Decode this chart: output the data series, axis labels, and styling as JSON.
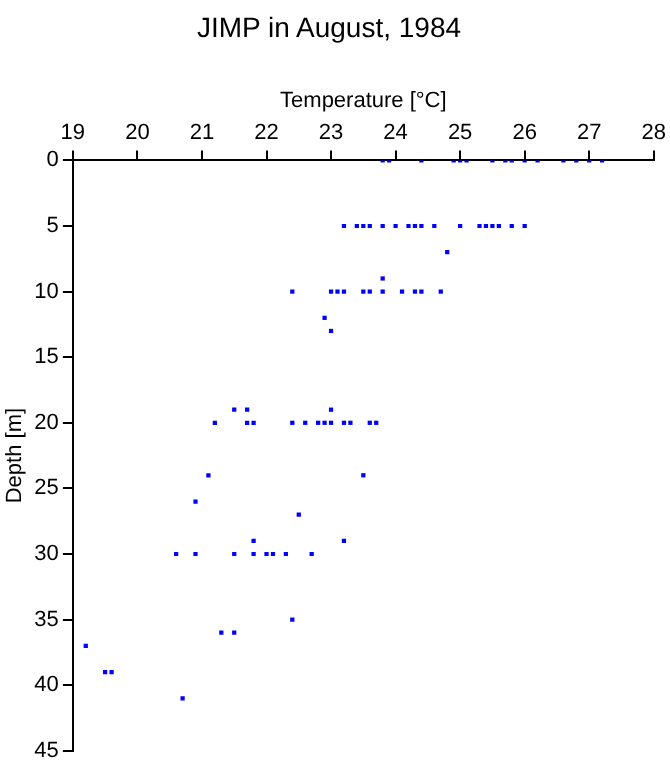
{
  "chart_data": {
    "type": "scatter",
    "title": "JIMP in August, 1984",
    "xlabel": "Temperature [°C]",
    "ylabel": "Depth [m]",
    "x": [
      23.8,
      23.9,
      24.4,
      24.9,
      25.0,
      25.1,
      25.5,
      25.7,
      25.8,
      26.0,
      26.2,
      26.6,
      26.8,
      27.0,
      27.2,
      23.2,
      23.4,
      23.5,
      23.6,
      23.8,
      24.0,
      24.2,
      24.3,
      24.4,
      24.6,
      25.0,
      25.3,
      25.4,
      25.5,
      25.6,
      25.8,
      26.0,
      24.8,
      23.8,
      22.4,
      23.0,
      23.1,
      23.2,
      23.5,
      23.6,
      23.8,
      24.1,
      24.3,
      24.4,
      24.7,
      22.9,
      23.0,
      21.5,
      21.7,
      23.0,
      21.2,
      21.7,
      21.8,
      22.4,
      22.6,
      22.8,
      22.9,
      23.0,
      23.2,
      23.3,
      23.6,
      23.7,
      21.1,
      23.5,
      20.9,
      22.5,
      21.8,
      23.2,
      20.6,
      20.9,
      21.5,
      21.8,
      22.0,
      22.1,
      22.3,
      22.7,
      22.4,
      21.3,
      21.5,
      19.2,
      19.5,
      19.6,
      20.7
    ],
    "values": [
      0,
      0,
      0,
      0,
      0,
      0,
      0,
      0,
      0,
      0,
      0,
      0,
      0,
      0,
      0,
      5,
      5,
      5,
      5,
      5,
      5,
      5,
      5,
      5,
      5,
      5,
      5,
      5,
      5,
      5,
      5,
      5,
      7,
      9,
      10,
      10,
      10,
      10,
      10,
      10,
      10,
      10,
      10,
      10,
      10,
      12,
      13,
      19,
      19,
      19,
      20,
      20,
      20,
      20,
      20,
      20,
      20,
      20,
      20,
      20,
      20,
      20,
      24,
      24,
      26,
      27,
      29,
      29,
      30,
      30,
      30,
      30,
      30,
      30,
      30,
      30,
      35,
      36,
      36,
      37,
      39,
      39,
      41
    ],
    "color": "#0000ff",
    "marker": "square",
    "xlim": [
      19,
      28
    ],
    "xticks": [
      19,
      20,
      21,
      22,
      23,
      24,
      25,
      26,
      27,
      28
    ],
    "ylim": [
      45,
      0
    ],
    "yticks": [
      0,
      5,
      10,
      15,
      20,
      25,
      30,
      35,
      40,
      45
    ],
    "grid": false,
    "legend": false
  }
}
